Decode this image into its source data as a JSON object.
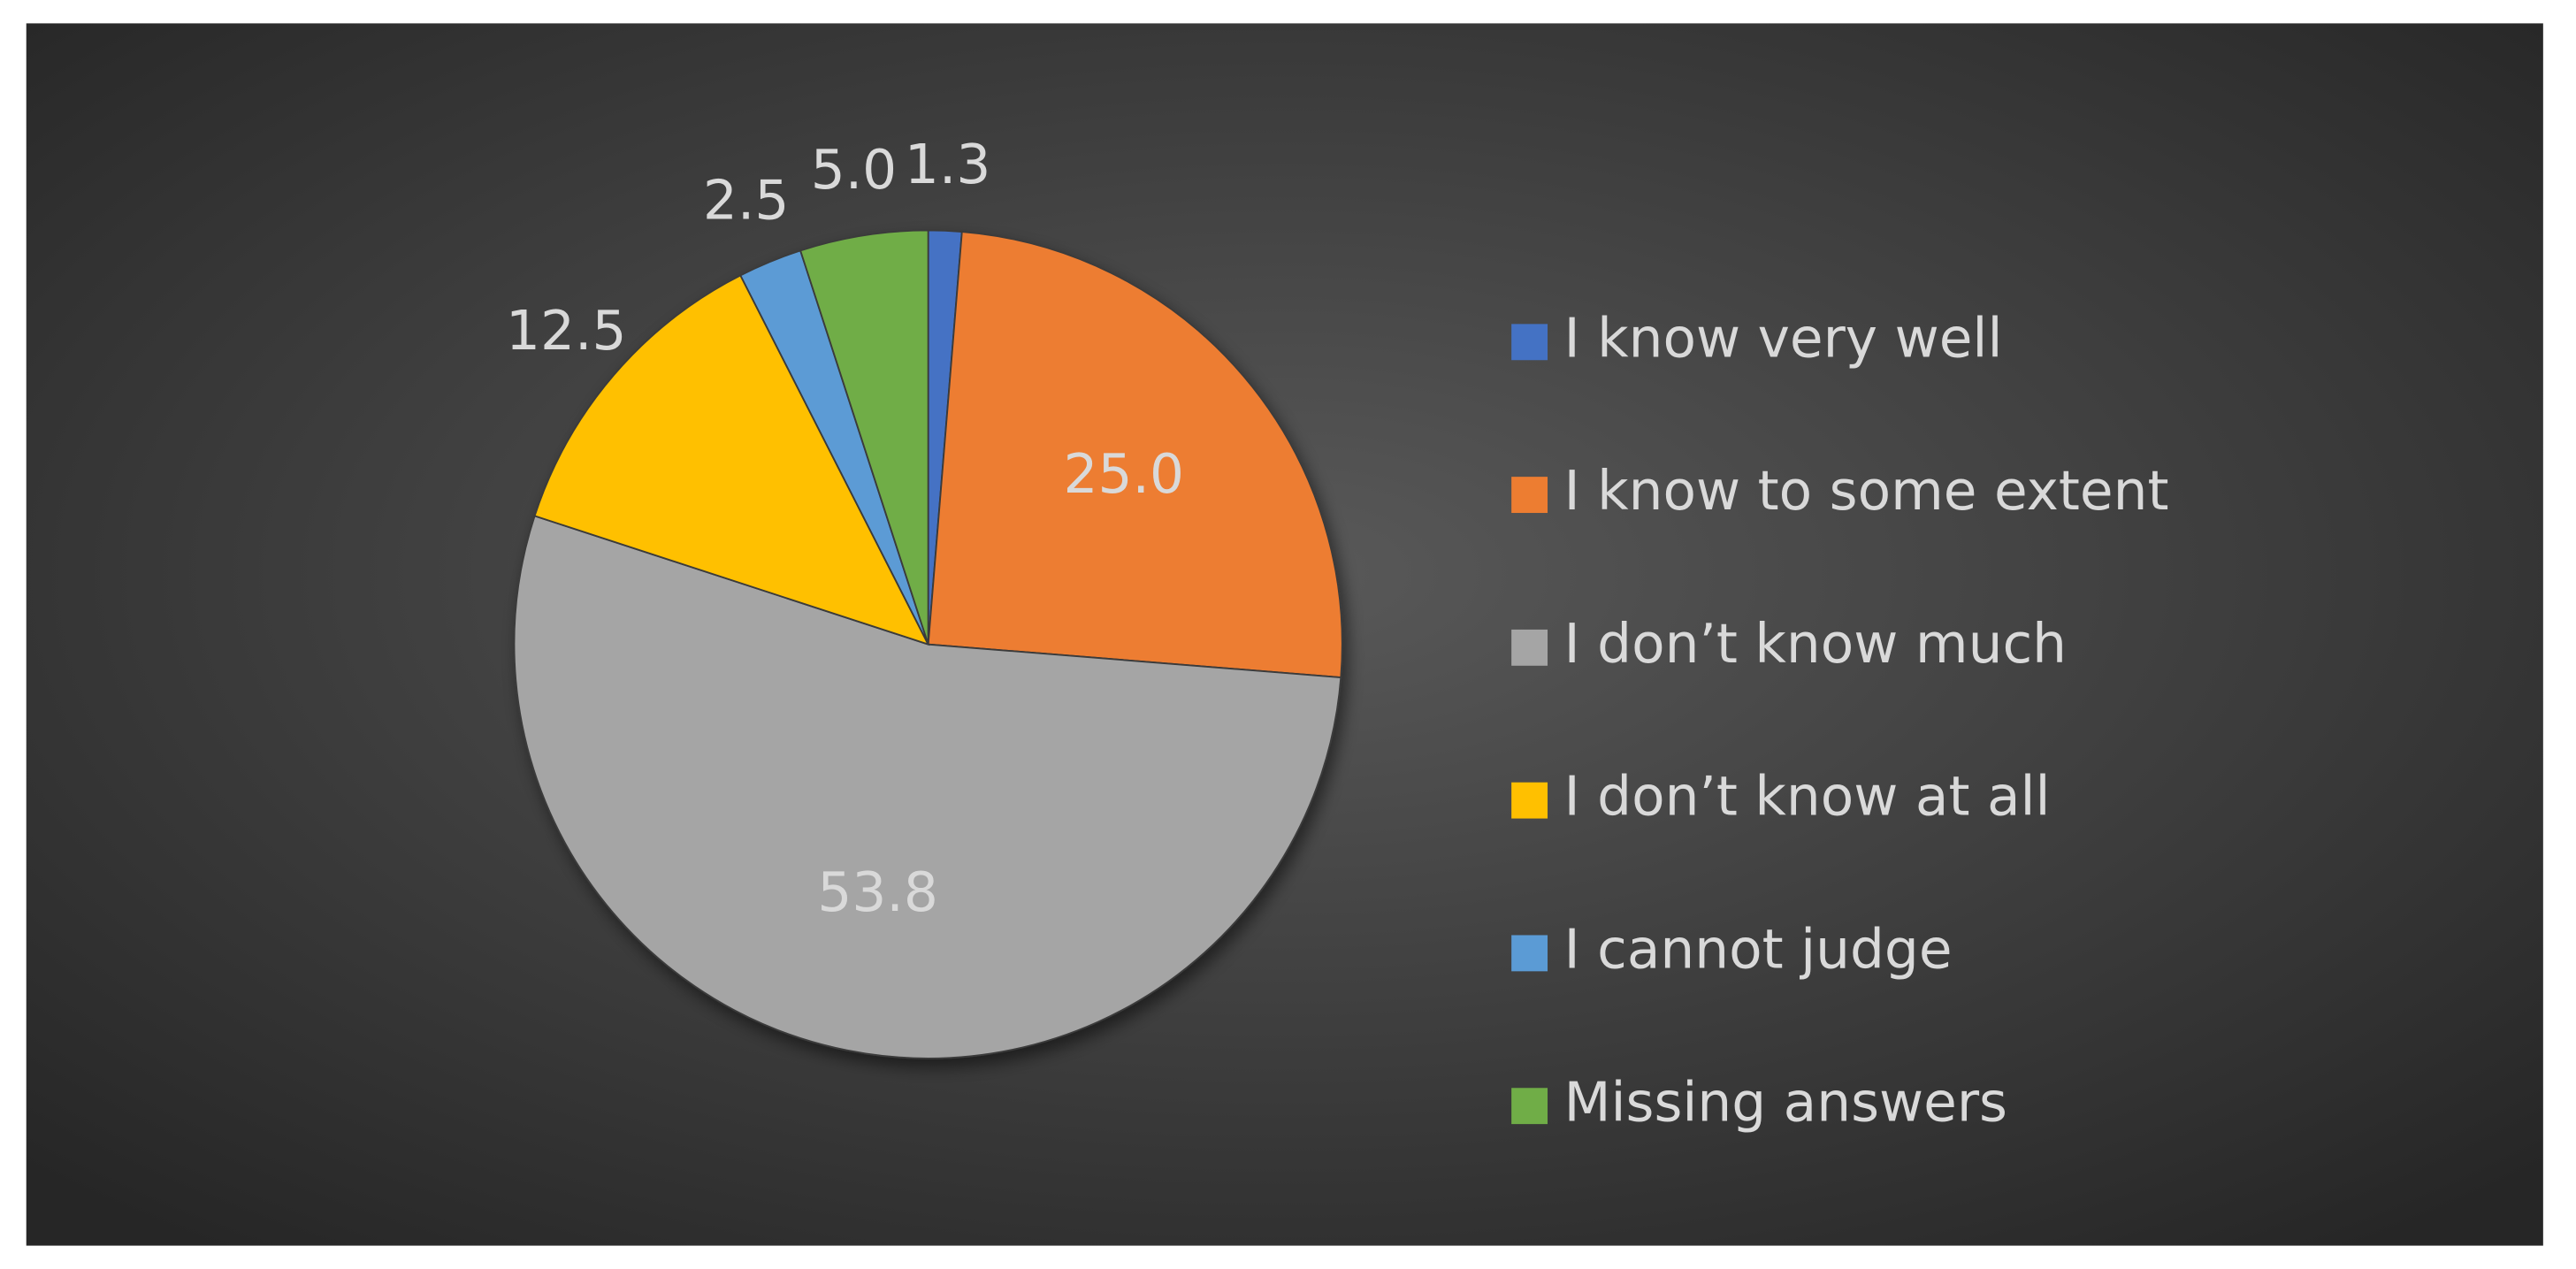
{
  "chart_data": {
    "type": "pie",
    "categories": [
      "I know very well",
      "I know to some extent",
      "I don’t know much",
      "I don’t know at all",
      "I cannot judge",
      "Missing answers"
    ],
    "values": [
      1.3,
      25.0,
      53.8,
      12.5,
      2.5,
      5.0
    ],
    "value_labels": [
      "1.3",
      "25.0",
      "53.8",
      "12.5",
      "2.5",
      "5.0"
    ],
    "colors": [
      "#4472c4",
      "#ed7d31",
      "#a5a5a5",
      "#ffc000",
      "#5b9bd5",
      "#70ad47"
    ],
    "legend": "right"
  }
}
